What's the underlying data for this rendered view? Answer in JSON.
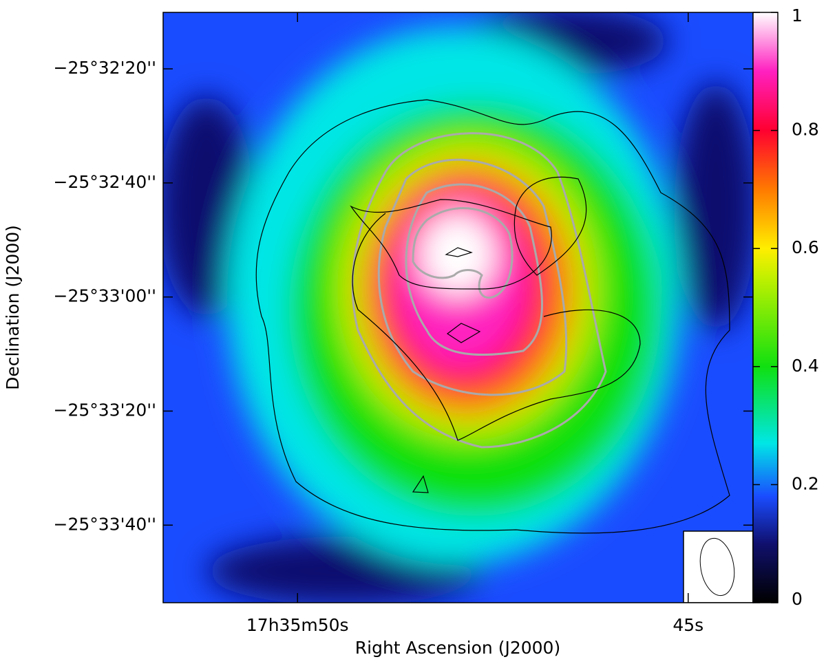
{
  "chart_data": {
    "type": "image",
    "xlabel": "Right Ascension (J2000)",
    "ylabel": "Declination (J2000)",
    "xlim": [
      51.72,
      44.17
    ],
    "xticks": [
      {
        "value": 50,
        "label": "17h35m50s"
      },
      {
        "value": 45,
        "label": "45s"
      }
    ],
    "ylim": [
      2033.6,
      1930.1
    ],
    "yticks": [
      {
        "value": 1940,
        "label": "−25°32'20''"
      },
      {
        "value": 1960,
        "label": "−25°32'40''"
      },
      {
        "value": 1980,
        "label": "−25°33'00''"
      },
      {
        "value": 2000,
        "label": "−25°33'20''"
      },
      {
        "value": 2020,
        "label": "−25°33'40''"
      }
    ],
    "clim": [
      0,
      1
    ],
    "cticks": [
      0,
      0.2,
      0.4,
      0.6,
      0.8,
      1
    ],
    "colormap": [
      [
        0,
        "#000000"
      ],
      [
        0.1,
        "#10106e"
      ],
      [
        0.18,
        "#1a4cff"
      ],
      [
        0.27,
        "#00e6e6"
      ],
      [
        0.4,
        "#10e010"
      ],
      [
        0.55,
        "#c0f000"
      ],
      [
        0.6,
        "#ffee00"
      ],
      [
        0.7,
        "#ff7a00"
      ],
      [
        0.8,
        "#ff0030"
      ],
      [
        0.9,
        "#ff20c0"
      ],
      [
        1,
        "#ffffff"
      ]
    ]
  }
}
